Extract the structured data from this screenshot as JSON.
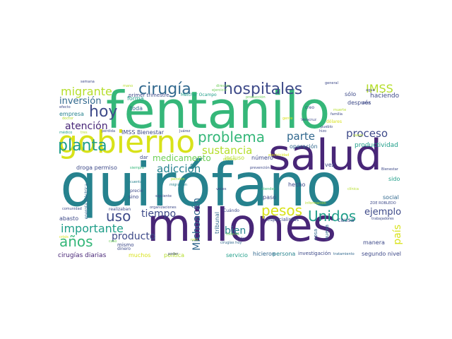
{
  "palette": {
    "dark_purple": "#482677",
    "indigo": "#3e4a89",
    "blue": "#31688e",
    "teal": "#26828e",
    "green_teal": "#1f9e89",
    "green": "#35b779",
    "light_green": "#6ece58",
    "lime": "#b5de2b",
    "yellow": "#d8e219"
  },
  "words": {
    "w_fentanilo": "fentanilo",
    "w_quirofano": "quirófano",
    "w_millones": "millones",
    "w_salud": "salud",
    "w_gobierno": "gobierno",
    "w_hospitales": "hospitales",
    "w_cirugia": "cirugía",
    "w_migrante": "migrante",
    "w_imss": "IMSS",
    "w_hoy": "hoy",
    "w_inversion": "inversión",
    "w_planta": "planta",
    "w_problema": "problema",
    "w_sustancia": "sustancia",
    "w_atencion": "atención",
    "w_parte": "parte",
    "w_proceso": "proceso",
    "w_productividad": "productividad",
    "w_medicamento": "medicamento",
    "w_adiccion": "adicción",
    "w_uso": "uso",
    "w_tiempo": "tiempo",
    "w_pesos": "pesos",
    "w_unidos": "Unidos",
    "w_pais": "país",
    "w_ejemplo": "ejemplo",
    "w_importante": "importante",
    "w_michoacan": "Michoacán",
    "w_bien": "bien",
    "w_anos": "años",
    "w_producto": "producto",
    "w_cirugias_diarias": "cirugías diarias",
    "w_droga_permiso": "droga permiso",
    "w_imss_bienestar": "IMSS Bienestar",
    "w_primer_trimestre": "primer trimestre",
    "w_melchor_ocampo": "Melchor Ocampo",
    "w_haciendo": "haciendo",
    "w_despues": "después",
    "w_solo": "sólo",
    "w_empresa": "empresa",
    "w_toda": "toda",
    "w_forma": "forma",
    "w_numero": "número",
    "w_incluso": "incluso",
    "w_vez": "vez",
    "w_operacion": "operación",
    "w_hecho": "hecho",
    "w_paso": "pasó",
    "w_sido": "sido",
    "w_social": "social",
    "w_abasto": "abasto",
    "w_manera": "manera",
    "w_persona": "persona",
    "w_investigacion": "investigación",
    "w_segundo_nivel": "segundo nivel",
    "w_hicieron": "hicieron",
    "w_servicio": "servicio",
    "w_politica": "política",
    "w_muchos": "muchos",
    "w_especialistas": "especialistas",
    "w_causa": "causa",
    "w_nueva": "nueva",
    "w_cosa": "cosa",
    "w_tribunal": "tribunal",
    "w_dar": "dar",
    "w_mismo": "mismo",
    "w_dinero": "dinero",
    "w_realizaban": "realizaban",
    "w_organizaciones": "organizaciones",
    "w_energia_electrica": "energía eléctrica",
    "w_cuando": "Cuándo",
    "w_vida": "vida",
    "w_cirugias_hoy": "cirugías hoy",
    "w_tratamiento": "tratamiento",
    "w_trabajadores": "trabajadores",
    "w_zoe_robledo": "ZOE ROBLEDO",
    "w_bienestar": "Bienestar",
    "w_prevencion": "prevención",
    "w_atender": "atender",
    "w_precio": "precio",
    "w_sino": "sino",
    "w_siguiente": "siguiente",
    "w_cuenta": "cuenta",
    "w_migracion": "migración",
    "w_poder": "poder",
    "w_comunidad": "comunidad",
    "w_medico": "médico",
    "w_perdida": "pérdida",
    "w_juarez": "Juárez",
    "w_siempre": "siempre",
    "w_semana": "semana",
    "w_general": "general",
    "w_agua": "agua",
    "w_dolor": "dolor",
    "w_creo": "creo",
    "w_hizo": "hizo",
    "w_pueblo": "pueblo",
    "w_familia": "familia",
    "w_muerte": "muerte",
    "w_dolares": "dólares",
    "w_efecto": "efecto",
    "w_gente": "gente",
    "w_veracruz": "Veracruz",
    "w_produccion": "producción",
    "w_informacion": "información",
    "w_todavia": "todavía",
    "w_publico": "público",
    "w_electricidad": "electricidad",
    "w_pension": "pensión",
    "w_veces": "veces",
    "w_ejercicio": "ejercicio",
    "w_rato": "rato",
    "w_crisis": "crisis",
    "w_mano": "mano",
    "w_director": "director",
    "w_doctor": "doctor",
    "w_clinica": "clínica",
    "w_tres": "tres",
    "w_caso": "caso",
    "w_casos": "casos"
  }
}
